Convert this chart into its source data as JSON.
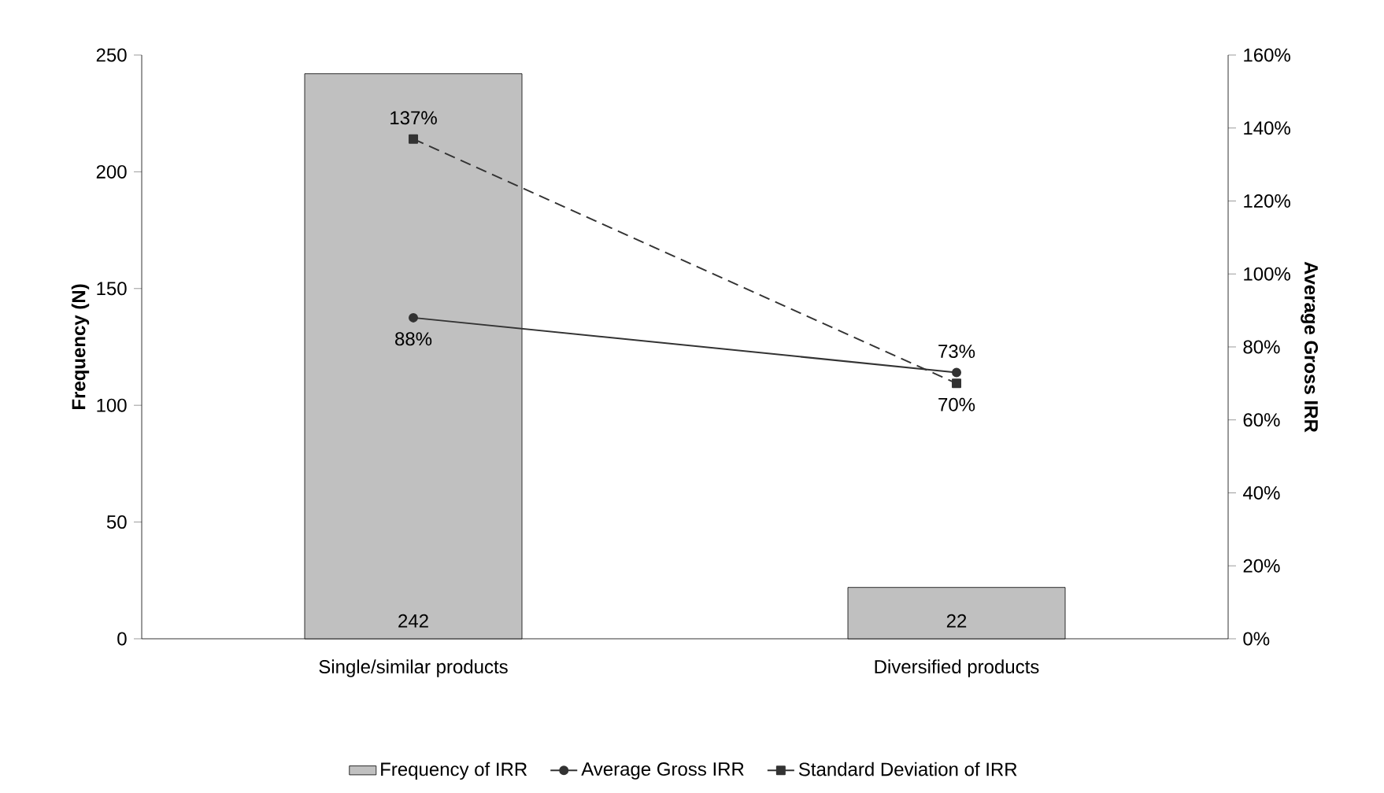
{
  "chart_data": {
    "type": "bar",
    "ylabel": "Frequency (N)",
    "y2label": "Average Gross IRR",
    "categories": [
      "Single/similar products",
      "Diversified products"
    ],
    "series": [
      {
        "name": "Frequency of IRR",
        "color": "#c0c0c0",
        "values": [
          242,
          22
        ],
        "value_labels": [
          "242",
          "22"
        ]
      },
      {
        "name": "Average Gross IRR",
        "type": "line",
        "axis": "y2",
        "color": "#333333",
        "marker": "circle",
        "line_style": "solid",
        "values": [
          88,
          73
        ],
        "value_labels": [
          "88%",
          "73%"
        ]
      },
      {
        "name": "Standard Deviation of IRR",
        "type": "line",
        "axis": "y2",
        "color": "#333333",
        "marker": "square",
        "line_style": "dashed",
        "values": [
          137,
          70
        ],
        "value_labels": [
          "137%",
          "70%"
        ]
      }
    ],
    "ylim": [
      0,
      250
    ],
    "yticks": [
      0,
      50,
      100,
      150,
      200,
      250
    ],
    "y2lim": [
      0,
      160
    ],
    "y2ticks": [
      {
        "value": 0,
        "label": "0%"
      },
      {
        "value": 20,
        "label": "20%"
      },
      {
        "value": 40,
        "label": "40%"
      },
      {
        "value": 60,
        "label": "60%"
      },
      {
        "value": 80,
        "label": "80%"
      },
      {
        "value": 100,
        "label": "100%"
      },
      {
        "value": 120,
        "label": "120%"
      },
      {
        "value": 140,
        "label": "140%"
      },
      {
        "value": 160,
        "label": "160%"
      }
    ],
    "grid": false,
    "legend": "bottom"
  }
}
